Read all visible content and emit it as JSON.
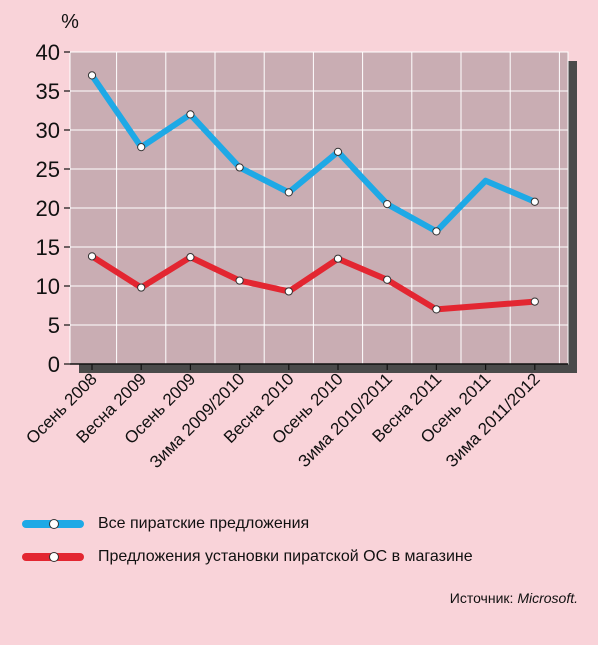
{
  "chart_data": {
    "type": "line",
    "unit_label": "%",
    "categories": [
      "Осень 2008",
      "Весна 2009",
      "Осень 2009",
      "Зима 2009/2010",
      "Весна 2010",
      "Осень 2010",
      "Зима 2010/2011",
      "Весна 2011",
      "Осень 2011",
      "Зима 2011/2012"
    ],
    "ylim": [
      0,
      40
    ],
    "yticks": [
      "0",
      "5",
      "10",
      "15",
      "20",
      "25",
      "30",
      "35",
      "40"
    ],
    "grid": true,
    "series": [
      {
        "name": "Все пиратские предложения",
        "color": "#1ea9e6",
        "values": [
          37,
          27.8,
          32,
          25.2,
          22,
          27.2,
          20.5,
          17,
          23.5,
          20.8
        ],
        "markers": [
          true,
          true,
          true,
          true,
          true,
          true,
          true,
          true,
          false,
          true
        ]
      },
      {
        "name": "Предложения установки пиратской ОС в магазине",
        "color": "#e32631",
        "values": [
          13.8,
          9.8,
          13.7,
          10.7,
          9.3,
          13.5,
          10.8,
          7,
          7.5,
          8
        ],
        "markers": [
          true,
          true,
          true,
          true,
          true,
          true,
          true,
          true,
          false,
          true
        ]
      }
    ]
  },
  "legend": {
    "items": [
      {
        "label": "Все пиратские предложения",
        "color": "#1ea9e6"
      },
      {
        "label": "Предложения установки пиратской ОС в магазине",
        "color": "#e32631"
      }
    ]
  },
  "source": {
    "prefix": "Источник: ",
    "name": "Microsoft."
  },
  "colors": {
    "background": "#f9d3d9",
    "plot_area": "#c9adb3",
    "shadow": "#4a4a4a",
    "grid": "#ffffff"
  }
}
